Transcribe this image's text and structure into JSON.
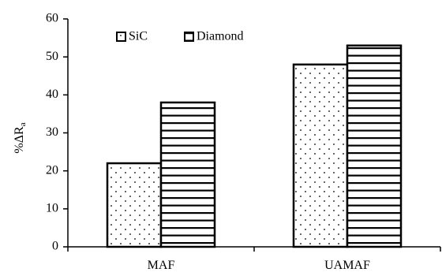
{
  "chart_data": {
    "type": "bar",
    "categories": [
      "MAF",
      "UAMAF"
    ],
    "series": [
      {
        "name": "SiC",
        "values": [
          22,
          48
        ],
        "pattern": "dots"
      },
      {
        "name": "Diamond",
        "values": [
          38,
          53
        ],
        "pattern": "horizontal-lines"
      }
    ],
    "title": "",
    "xlabel": "",
    "ylabel": "%ΔRa",
    "ylim": [
      0,
      60
    ],
    "yticks": [
      0,
      10,
      20,
      30,
      40,
      50,
      60
    ],
    "grid": false,
    "legend_position": "top-left",
    "colors": {
      "bar_fill": "#ffffff",
      "bar_stroke": "#000000",
      "pattern": "#000000"
    }
  }
}
